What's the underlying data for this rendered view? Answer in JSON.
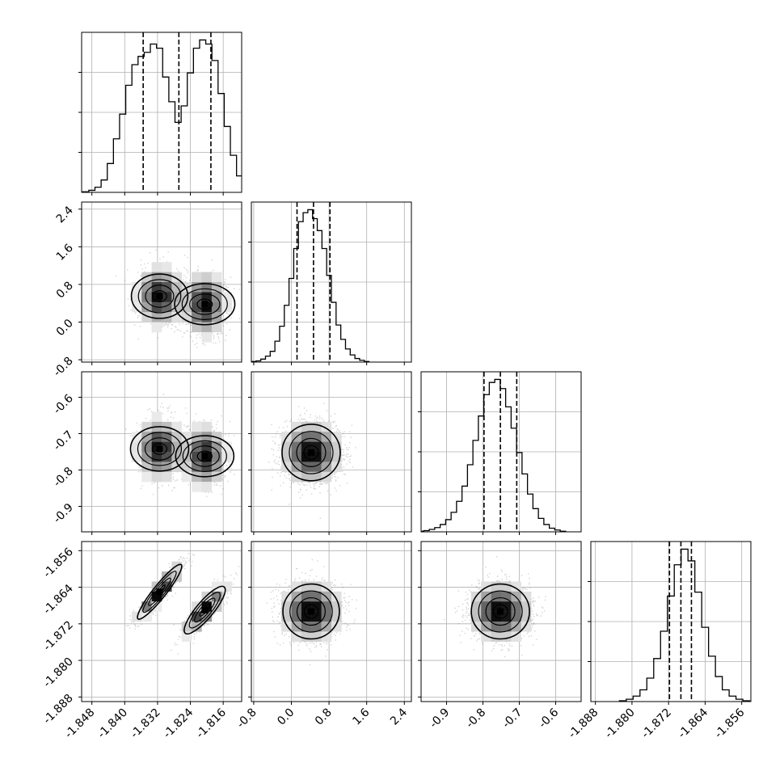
{
  "chart_data": {
    "type": "corner",
    "description_note": "",
    "colors": {
      "line": "#000000",
      "grid": "#b0b0b0",
      "hist2d_dark": "#000000",
      "hist2d_light": "#ffffff",
      "points": "#808080"
    },
    "parameters": [
      {
        "id": "p0",
        "range": [
          -1.8505,
          -1.8115
        ],
        "ticks": [
          "-1.848",
          "-1.840",
          "-1.832",
          "-1.824",
          "-1.816"
        ],
        "tick_values": [
          -1.848,
          -1.84,
          -1.832,
          -1.824,
          -1.816
        ],
        "quantiles": [
          -1.8355,
          -1.8268,
          -1.819
        ],
        "modes": [
          {
            "mean": -1.8315,
            "sd": 0.0027,
            "weight": 0.5
          },
          {
            "mean": -1.8205,
            "sd": 0.0025,
            "weight": 0.5
          }
        ],
        "hist_bins": [
          [
            -1.8495,
            0.3
          ],
          [
            -1.848,
            1.0
          ],
          [
            -1.8465,
            2.5
          ],
          [
            -1.845,
            6.0
          ],
          [
            -1.8435,
            14
          ],
          [
            -1.842,
            26
          ],
          [
            -1.8405,
            38
          ],
          [
            -1.839,
            52
          ],
          [
            -1.8375,
            62
          ],
          [
            -1.836,
            66
          ],
          [
            -1.8345,
            68
          ],
          [
            -1.833,
            72
          ],
          [
            -1.8315,
            70
          ],
          [
            -1.83,
            56
          ],
          [
            -1.8285,
            44
          ],
          [
            -1.827,
            34
          ],
          [
            -1.8255,
            42
          ],
          [
            -1.824,
            58
          ],
          [
            -1.8225,
            70
          ],
          [
            -1.821,
            74
          ],
          [
            -1.8195,
            72
          ],
          [
            -1.818,
            64
          ],
          [
            -1.8165,
            48
          ],
          [
            -1.815,
            32
          ],
          [
            -1.8135,
            18
          ],
          [
            -1.812,
            8
          ],
          [
            -1.8105,
            2
          ]
        ]
      },
      {
        "id": "p1",
        "range": [
          -0.85,
          2.55
        ],
        "ticks": [
          "-0.8",
          "0.0",
          "0.8",
          "1.6",
          "2.4"
        ],
        "tick_values": [
          -0.8,
          0.0,
          0.8,
          1.6,
          2.4
        ],
        "quantiles": [
          0.12,
          0.47,
          0.82
        ],
        "modes": [
          {
            "mean": 0.47,
            "sd": 0.34,
            "weight": 1
          }
        ],
        "hist_bins": [
          [
            -0.8,
            1
          ],
          [
            -0.7,
            2
          ],
          [
            -0.6,
            5
          ],
          [
            -0.5,
            10
          ],
          [
            -0.4,
            18
          ],
          [
            -0.3,
            35
          ],
          [
            -0.2,
            60
          ],
          [
            -0.1,
            95
          ],
          [
            0.0,
            140
          ],
          [
            0.1,
            190
          ],
          [
            0.2,
            235
          ],
          [
            0.3,
            250
          ],
          [
            0.4,
            255
          ],
          [
            0.5,
            240
          ],
          [
            0.6,
            220
          ],
          [
            0.7,
            190
          ],
          [
            0.8,
            145
          ],
          [
            0.9,
            100
          ],
          [
            1.0,
            62
          ],
          [
            1.1,
            38
          ],
          [
            1.2,
            22
          ],
          [
            1.3,
            12
          ],
          [
            1.4,
            6
          ],
          [
            1.5,
            3
          ],
          [
            1.6,
            1
          ]
        ]
      },
      {
        "id": "p2",
        "range": [
          -0.97,
          -0.53
        ],
        "ticks": [
          "-0.9",
          "-0.8",
          "-0.7",
          "-0.6"
        ],
        "tick_values": [
          -0.9,
          -0.8,
          -0.7,
          -0.6
        ],
        "quantiles": [
          -0.797,
          -0.752,
          -0.707
        ],
        "modes": [
          {
            "mean": -0.752,
            "sd": 0.045,
            "weight": 1
          }
        ],
        "hist_bins": [
          [
            -0.97,
            1
          ],
          [
            -0.955,
            2
          ],
          [
            -0.94,
            4
          ],
          [
            -0.925,
            7
          ],
          [
            -0.91,
            12
          ],
          [
            -0.895,
            20
          ],
          [
            -0.88,
            32
          ],
          [
            -0.865,
            50
          ],
          [
            -0.85,
            75
          ],
          [
            -0.835,
            110
          ],
          [
            -0.82,
            150
          ],
          [
            -0.805,
            190
          ],
          [
            -0.79,
            225
          ],
          [
            -0.775,
            245
          ],
          [
            -0.76,
            250
          ],
          [
            -0.745,
            235
          ],
          [
            -0.73,
            205
          ],
          [
            -0.715,
            170
          ],
          [
            -0.7,
            130
          ],
          [
            -0.685,
            95
          ],
          [
            -0.67,
            62
          ],
          [
            -0.655,
            38
          ],
          [
            -0.64,
            22
          ],
          [
            -0.625,
            12
          ],
          [
            -0.61,
            6
          ],
          [
            -0.595,
            3
          ],
          [
            -0.58,
            1
          ]
        ]
      },
      {
        "id": "p3",
        "range": [
          -1.889,
          -1.854
        ],
        "ticks": [
          "-1.888",
          "-1.880",
          "-1.872",
          "-1.864",
          "-1.856"
        ],
        "tick_values": [
          -1.888,
          -1.88,
          -1.872,
          -1.864,
          -1.856
        ],
        "quantiles": [
          -1.8718,
          -1.8693,
          -1.867
        ],
        "modes": [
          {
            "mean": -1.8693,
            "sd": 0.003,
            "weight": 1
          }
        ],
        "hist_bins": [
          [
            -1.882,
            1
          ],
          [
            -1.8805,
            3
          ],
          [
            -1.879,
            7
          ],
          [
            -1.8775,
            15
          ],
          [
            -1.876,
            30
          ],
          [
            -1.8745,
            55
          ],
          [
            -1.873,
            90
          ],
          [
            -1.8715,
            135
          ],
          [
            -1.87,
            175
          ],
          [
            -1.8685,
            195
          ],
          [
            -1.867,
            180
          ],
          [
            -1.8655,
            140
          ],
          [
            -1.864,
            95
          ],
          [
            -1.8625,
            58
          ],
          [
            -1.861,
            32
          ],
          [
            -1.8595,
            15
          ],
          [
            -1.858,
            7
          ],
          [
            -1.8565,
            3
          ],
          [
            -1.855,
            1
          ]
        ]
      }
    ],
    "correlations": [
      {
        "x": "p0",
        "y": "p1",
        "modes": [
          {
            "mx": -1.8315,
            "my": 0.55,
            "sx": 0.0027,
            "sy": 0.3,
            "rho": 0.0
          },
          {
            "mx": -1.8205,
            "my": 0.38,
            "sx": 0.0025,
            "sy": 0.32,
            "rho": 0.0
          }
        ]
      },
      {
        "x": "p0",
        "y": "p2",
        "modes": [
          {
            "mx": -1.8315,
            "my": -0.742,
            "sx": 0.0027,
            "sy": 0.04,
            "rho": 0.0
          },
          {
            "mx": -1.8205,
            "my": -0.762,
            "sx": 0.0025,
            "sy": 0.04,
            "rho": 0.0
          }
        ]
      },
      {
        "x": "p0",
        "y": "p3",
        "modes": [
          {
            "mx": -1.8315,
            "my": -1.865,
            "sx": 0.0027,
            "sy": 0.003,
            "rho": 0.93
          },
          {
            "mx": -1.8205,
            "my": -1.869,
            "sx": 0.0025,
            "sy": 0.0026,
            "rho": 0.85
          }
        ]
      },
      {
        "x": "p1",
        "y": "p2",
        "modes": [
          {
            "mx": 0.42,
            "my": -0.752,
            "sx": 0.3,
            "sy": 0.04,
            "rho": 0.0
          }
        ]
      },
      {
        "x": "p1",
        "y": "p3",
        "modes": [
          {
            "mx": 0.42,
            "my": -1.8693,
            "sx": 0.3,
            "sy": 0.003,
            "rho": 0.0
          }
        ]
      },
      {
        "x": "p2",
        "y": "p3",
        "modes": [
          {
            "mx": -0.752,
            "my": -1.8693,
            "sx": 0.04,
            "sy": 0.003,
            "rho": 0.0
          }
        ]
      }
    ],
    "contour_levels": [
      "0.118",
      "0.393",
      "0.675",
      "0.864"
    ],
    "grid": true,
    "legend": "none"
  }
}
